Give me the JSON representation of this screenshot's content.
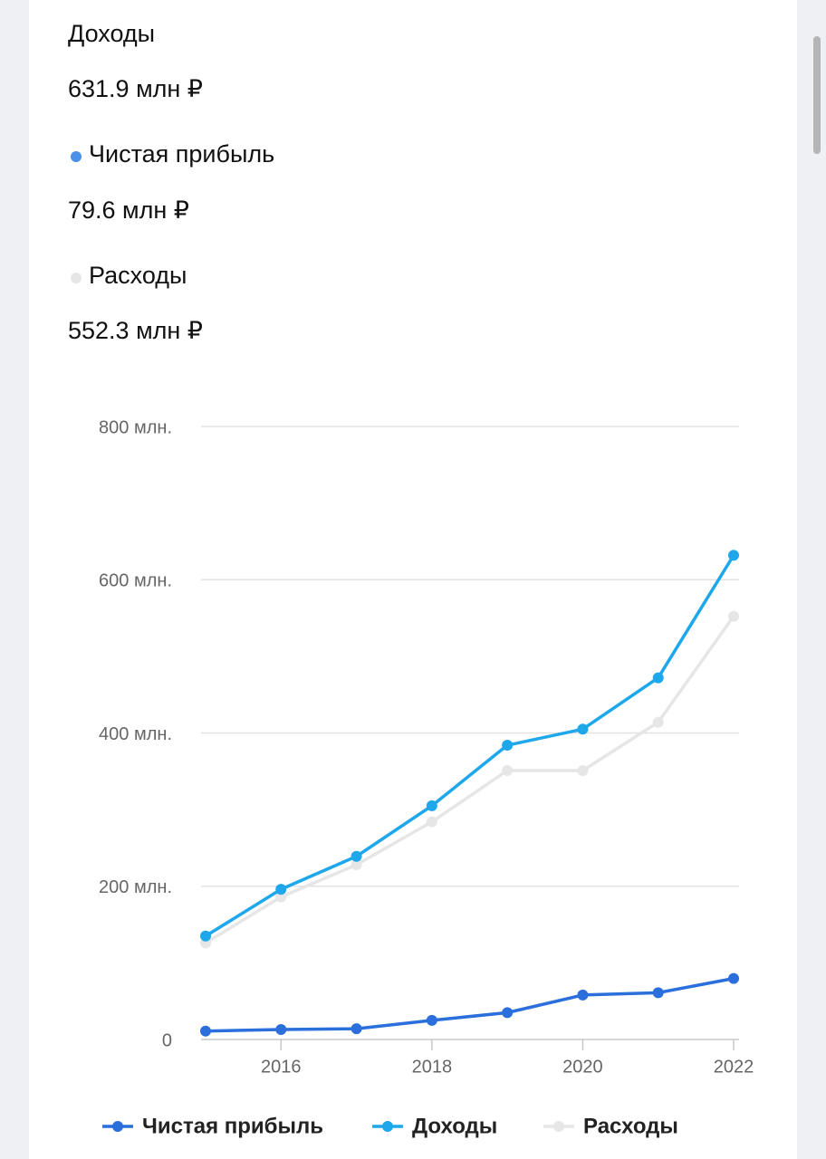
{
  "summary": [
    {
      "name": "Доходы",
      "value": "631.9 млн ₽"
    },
    {
      "name": "Чистая прибыль",
      "value": "79.6 млн ₽"
    },
    {
      "name": "Расходы",
      "value": "552.3 млн ₽"
    }
  ],
  "chart_data": {
    "type": "line",
    "x": [
      2015,
      2016,
      2017,
      2018,
      2019,
      2020,
      2021,
      2022
    ],
    "xlim": [
      2015,
      2022
    ],
    "xticks": [
      2016,
      2018,
      2020,
      2022
    ],
    "ylim": [
      0,
      800
    ],
    "yticks": [
      0,
      {
        "value": 200,
        "label": "200 млн."
      },
      {
        "value": 400,
        "label": "400 млн."
      },
      {
        "value": 600,
        "label": "600 млн."
      },
      {
        "value": 800,
        "label": "800 млн."
      }
    ],
    "grid": true,
    "series": [
      {
        "name": "Чистая прибыль",
        "color": "#2a6fdb",
        "values": [
          11,
          13,
          14,
          25,
          35,
          58,
          61,
          79.6
        ]
      },
      {
        "name": "Доходы",
        "color": "#1ea7ea",
        "values": [
          135,
          196,
          239,
          305,
          384,
          405,
          472,
          631.9
        ]
      },
      {
        "name": "Расходы",
        "color": "#e6e6e6",
        "values": [
          126,
          186,
          228,
          284,
          351,
          351,
          414,
          552.3
        ]
      }
    ]
  }
}
